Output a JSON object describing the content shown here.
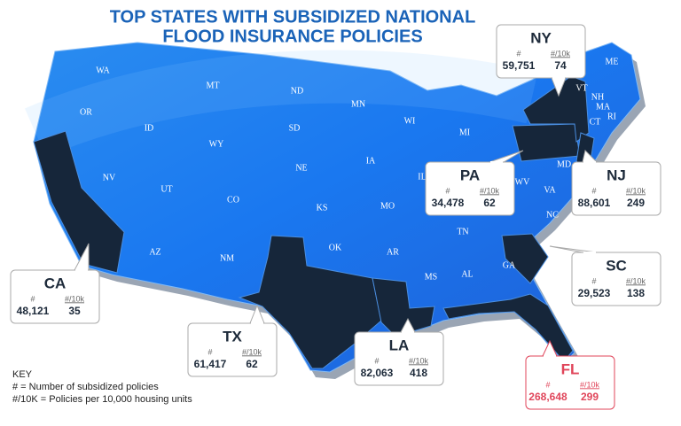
{
  "header": {
    "title": [
      "TOP STATES WITH SUBSIDIZED NATIONAL",
      "FLOOD INSURANCE POLICIES"
    ]
  },
  "states": [
    "WA",
    "MT",
    "ND",
    "MN",
    "WI",
    "MI",
    "OR",
    "ID",
    "SD",
    "WY",
    "IA",
    "NE",
    "NV",
    "UT",
    "IL",
    "CO",
    "KS",
    "MO",
    "OK",
    "AR",
    "TN",
    "AZ",
    "NM",
    "MS",
    "AL",
    "GA",
    "NC",
    "VA",
    "WV",
    "MD",
    "VT",
    "NH",
    "ME",
    "MA",
    "RI",
    "CT"
  ],
  "callouts": [
    {
      "state": "NY",
      "count_header": "#",
      "rate_header": "#/10k",
      "count": "59,751",
      "rate": "74"
    },
    {
      "state": "PA",
      "count_header": "#",
      "rate_header": "#/10k",
      "count": "34,478",
      "rate": "62"
    },
    {
      "state": "NJ",
      "count_header": "#",
      "rate_header": "#/10k",
      "count": "88,601",
      "rate": "249"
    },
    {
      "state": "SC",
      "count_header": "#",
      "rate_header": "#/10k",
      "count": "29,523",
      "rate": "138"
    },
    {
      "state": "CA",
      "count_header": "#",
      "rate_header": "#/10k",
      "count": "48,121",
      "rate": "35"
    },
    {
      "state": "TX",
      "count_header": "#",
      "rate_header": "#/10k",
      "count": "61,417",
      "rate": "62"
    },
    {
      "state": "LA",
      "count_header": "#",
      "rate_header": "#/10k",
      "count": "82,063",
      "rate": "418"
    },
    {
      "state": "FL",
      "count_header": "#",
      "rate_header": "#/10k",
      "count": "268,648",
      "rate": "299"
    }
  ],
  "key": {
    "title": "KEY",
    "lines": [
      "# = Number of subsidized policies",
      "#/10K =  Policies per 10,000 housing units"
    ]
  }
}
